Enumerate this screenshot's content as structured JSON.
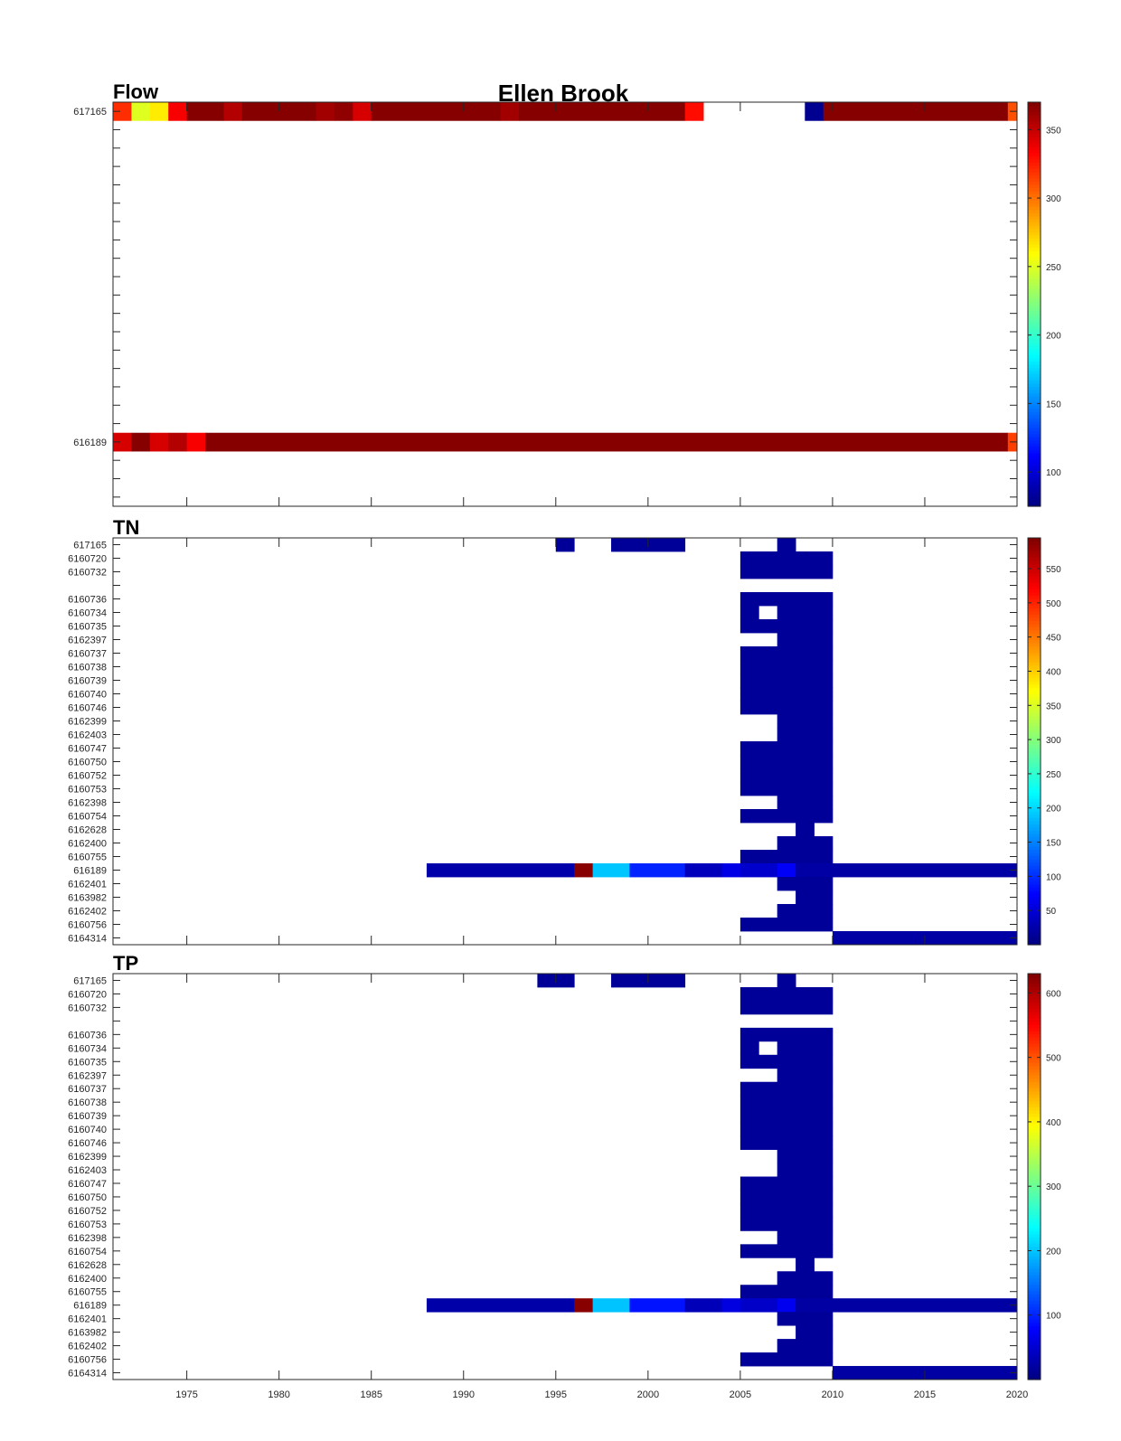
{
  "figure": {
    "title": "Ellen Brook"
  },
  "chart_data": [
    {
      "type": "heatmap",
      "title": "Flow",
      "xlim": [
        1971,
        2020
      ],
      "x_ticks": [
        1975,
        1980,
        1985,
        1990,
        1995,
        2000,
        2005,
        2010,
        2015,
        2020
      ],
      "row_count": 22,
      "row_labels": [
        {
          "row": 0,
          "label": "617165"
        },
        {
          "row": 18,
          "label": "616189"
        }
      ],
      "colorbar": {
        "min": 75,
        "max": 370,
        "ticks": [
          100,
          150,
          200,
          250,
          300,
          350
        ],
        "colormap": "jet"
      },
      "cells": [
        {
          "row": 0,
          "x0": 1971,
          "x1": 1972,
          "v": 320
        },
        {
          "row": 0,
          "x0": 1972,
          "x1": 1973,
          "v": 250
        },
        {
          "row": 0,
          "x0": 1973,
          "x1": 1974,
          "v": 265
        },
        {
          "row": 0,
          "x0": 1974,
          "x1": 1975,
          "v": 335
        },
        {
          "row": 0,
          "x0": 1975,
          "x1": 1977,
          "v": 368
        },
        {
          "row": 0,
          "x0": 1977,
          "x1": 1978,
          "v": 355
        },
        {
          "row": 0,
          "x0": 1978,
          "x1": 1982,
          "v": 368
        },
        {
          "row": 0,
          "x0": 1982,
          "x1": 1983,
          "v": 360
        },
        {
          "row": 0,
          "x0": 1983,
          "x1": 1984,
          "v": 365
        },
        {
          "row": 0,
          "x0": 1984,
          "x1": 1985,
          "v": 345
        },
        {
          "row": 0,
          "x0": 1985,
          "x1": 1992,
          "v": 368
        },
        {
          "row": 0,
          "x0": 1992,
          "x1": 1993,
          "v": 360
        },
        {
          "row": 0,
          "x0": 1993,
          "x1": 2002,
          "v": 368
        },
        {
          "row": 0,
          "x0": 2002,
          "x1": 2003,
          "v": 330
        },
        {
          "row": 0,
          "x0": 2008.5,
          "x1": 2009.5,
          "v": 80
        },
        {
          "row": 0,
          "x0": 2009.5,
          "x1": 2019.5,
          "v": 368
        },
        {
          "row": 0,
          "x0": 2019.5,
          "x1": 2020.5,
          "v": 310
        },
        {
          "row": 18,
          "x0": 1971,
          "x1": 1972,
          "v": 345
        },
        {
          "row": 18,
          "x0": 1972,
          "x1": 1973,
          "v": 368
        },
        {
          "row": 18,
          "x0": 1973,
          "x1": 1974,
          "v": 345
        },
        {
          "row": 18,
          "x0": 1974,
          "x1": 1975,
          "v": 355
        },
        {
          "row": 18,
          "x0": 1975,
          "x1": 1976,
          "v": 335
        },
        {
          "row": 18,
          "x0": 1976,
          "x1": 2019.5,
          "v": 368
        },
        {
          "row": 18,
          "x0": 2019.5,
          "x1": 2020.5,
          "v": 315
        }
      ]
    },
    {
      "type": "heatmap",
      "title": "TN",
      "xlim": [
        1971,
        2020
      ],
      "x_ticks": [
        1975,
        1980,
        1985,
        1990,
        1995,
        2000,
        2005,
        2010,
        2015,
        2020
      ],
      "row_count": 30,
      "row_labels": [
        {
          "row": 0,
          "label": "617165"
        },
        {
          "row": 1,
          "label": "6160720"
        },
        {
          "row": 2,
          "label": "6160732"
        },
        {
          "row": 4,
          "label": "6160736"
        },
        {
          "row": 5,
          "label": "6160734"
        },
        {
          "row": 6,
          "label": "6160735"
        },
        {
          "row": 7,
          "label": "6162397"
        },
        {
          "row": 8,
          "label": "6160737"
        },
        {
          "row": 9,
          "label": "6160738"
        },
        {
          "row": 10,
          "label": "6160739"
        },
        {
          "row": 11,
          "label": "6160740"
        },
        {
          "row": 12,
          "label": "6160746"
        },
        {
          "row": 13,
          "label": "6162399"
        },
        {
          "row": 14,
          "label": "6162403"
        },
        {
          "row": 15,
          "label": "6160747"
        },
        {
          "row": 16,
          "label": "6160750"
        },
        {
          "row": 17,
          "label": "6160752"
        },
        {
          "row": 18,
          "label": "6160753"
        },
        {
          "row": 19,
          "label": "6162398"
        },
        {
          "row": 20,
          "label": "6160754"
        },
        {
          "row": 21,
          "label": "6162628"
        },
        {
          "row": 22,
          "label": "6162400"
        },
        {
          "row": 23,
          "label": "6160755"
        },
        {
          "row": 24,
          "label": "616189"
        },
        {
          "row": 25,
          "label": "6162401"
        },
        {
          "row": 26,
          "label": "6163982"
        },
        {
          "row": 27,
          "label": "6162402"
        },
        {
          "row": 28,
          "label": "6160756"
        },
        {
          "row": 29,
          "label": "6164314"
        }
      ],
      "colorbar": {
        "min": 0,
        "max": 595,
        "ticks": [
          50,
          100,
          150,
          200,
          250,
          300,
          350,
          400,
          450,
          500,
          550
        ],
        "colormap": "jet"
      },
      "cells": [
        {
          "row": 0,
          "x0": 1995,
          "x1": 1996,
          "v": 15
        },
        {
          "row": 0,
          "x0": 1998,
          "x1": 2002,
          "v": 15
        },
        {
          "row": 0,
          "x0": 2007,
          "x1": 2008,
          "v": 15
        },
        {
          "row": 1,
          "x0": 2005,
          "x1": 2010,
          "v": 15
        },
        {
          "row": 2,
          "x0": 2005,
          "x1": 2010,
          "v": 15
        },
        {
          "row": 4,
          "x0": 2005,
          "x1": 2010,
          "v": 15
        },
        {
          "row": 5,
          "x0": 2005,
          "x1": 2006,
          "v": 15
        },
        {
          "row": 5,
          "x0": 2007,
          "x1": 2010,
          "v": 15
        },
        {
          "row": 6,
          "x0": 2005,
          "x1": 2010,
          "v": 15
        },
        {
          "row": 7,
          "x0": 2007,
          "x1": 2010,
          "v": 15
        },
        {
          "row": 8,
          "x0": 2005,
          "x1": 2010,
          "v": 15
        },
        {
          "row": 9,
          "x0": 2005,
          "x1": 2010,
          "v": 15
        },
        {
          "row": 10,
          "x0": 2005,
          "x1": 2010,
          "v": 15
        },
        {
          "row": 11,
          "x0": 2005,
          "x1": 2010,
          "v": 15
        },
        {
          "row": 12,
          "x0": 2005,
          "x1": 2010,
          "v": 15
        },
        {
          "row": 13,
          "x0": 2007,
          "x1": 2010,
          "v": 15
        },
        {
          "row": 14,
          "x0": 2007,
          "x1": 2010,
          "v": 15
        },
        {
          "row": 15,
          "x0": 2005,
          "x1": 2010,
          "v": 15
        },
        {
          "row": 16,
          "x0": 2005,
          "x1": 2010,
          "v": 15
        },
        {
          "row": 17,
          "x0": 2005,
          "x1": 2010,
          "v": 15
        },
        {
          "row": 18,
          "x0": 2005,
          "x1": 2010,
          "v": 15
        },
        {
          "row": 19,
          "x0": 2007,
          "x1": 2010,
          "v": 15
        },
        {
          "row": 20,
          "x0": 2005,
          "x1": 2010,
          "v": 15
        },
        {
          "row": 21,
          "x0": 2008,
          "x1": 2009,
          "v": 15
        },
        {
          "row": 22,
          "x0": 2007,
          "x1": 2010,
          "v": 15
        },
        {
          "row": 23,
          "x0": 2005,
          "x1": 2010,
          "v": 15
        },
        {
          "row": 24,
          "x0": 1988,
          "x1": 1996,
          "v": 25
        },
        {
          "row": 24,
          "x0": 1996,
          "x1": 1997,
          "v": 590
        },
        {
          "row": 24,
          "x0": 1997,
          "x1": 1999,
          "v": 190
        },
        {
          "row": 24,
          "x0": 1999,
          "x1": 2002,
          "v": 95
        },
        {
          "row": 24,
          "x0": 2002,
          "x1": 2004,
          "v": 35
        },
        {
          "row": 24,
          "x0": 2004,
          "x1": 2005,
          "v": 60
        },
        {
          "row": 24,
          "x0": 2005,
          "x1": 2007,
          "v": 45
        },
        {
          "row": 24,
          "x0": 2007,
          "x1": 2008,
          "v": 70
        },
        {
          "row": 24,
          "x0": 2008,
          "x1": 2020,
          "v": 22
        },
        {
          "row": 25,
          "x0": 2007,
          "x1": 2010,
          "v": 15
        },
        {
          "row": 26,
          "x0": 2008,
          "x1": 2010,
          "v": 15
        },
        {
          "row": 27,
          "x0": 2007,
          "x1": 2010,
          "v": 15
        },
        {
          "row": 28,
          "x0": 2005,
          "x1": 2010,
          "v": 15
        },
        {
          "row": 29,
          "x0": 2010,
          "x1": 2020,
          "v": 22
        }
      ]
    },
    {
      "type": "heatmap",
      "title": "TP",
      "xlim": [
        1971,
        2020
      ],
      "x_ticks": [
        1975,
        1980,
        1985,
        1990,
        1995,
        2000,
        2005,
        2010,
        2015,
        2020
      ],
      "x_tick_labels": [
        "1975",
        "1980",
        "1985",
        "1990",
        "1995",
        "2000",
        "2005",
        "2010",
        "2015",
        "2020"
      ],
      "row_count": 30,
      "row_labels": [
        {
          "row": 0,
          "label": "617165"
        },
        {
          "row": 1,
          "label": "6160720"
        },
        {
          "row": 2,
          "label": "6160732"
        },
        {
          "row": 4,
          "label": "6160736"
        },
        {
          "row": 5,
          "label": "6160734"
        },
        {
          "row": 6,
          "label": "6160735"
        },
        {
          "row": 7,
          "label": "6162397"
        },
        {
          "row": 8,
          "label": "6160737"
        },
        {
          "row": 9,
          "label": "6160738"
        },
        {
          "row": 10,
          "label": "6160739"
        },
        {
          "row": 11,
          "label": "6160740"
        },
        {
          "row": 12,
          "label": "6160746"
        },
        {
          "row": 13,
          "label": "6162399"
        },
        {
          "row": 14,
          "label": "6162403"
        },
        {
          "row": 15,
          "label": "6160747"
        },
        {
          "row": 16,
          "label": "6160750"
        },
        {
          "row": 17,
          "label": "6160752"
        },
        {
          "row": 18,
          "label": "6160753"
        },
        {
          "row": 19,
          "label": "6162398"
        },
        {
          "row": 20,
          "label": "6160754"
        },
        {
          "row": 21,
          "label": "6162628"
        },
        {
          "row": 22,
          "label": "6162400"
        },
        {
          "row": 23,
          "label": "6160755"
        },
        {
          "row": 24,
          "label": "616189"
        },
        {
          "row": 25,
          "label": "6162401"
        },
        {
          "row": 26,
          "label": "6163982"
        },
        {
          "row": 27,
          "label": "6162402"
        },
        {
          "row": 28,
          "label": "6160756"
        },
        {
          "row": 29,
          "label": "6164314"
        }
      ],
      "colorbar": {
        "min": 0,
        "max": 630,
        "ticks": [
          100,
          200,
          300,
          400,
          500,
          600
        ],
        "colormap": "jet"
      },
      "cells": [
        {
          "row": 0,
          "x0": 1994,
          "x1": 1996,
          "v": 15
        },
        {
          "row": 0,
          "x0": 1998,
          "x1": 2002,
          "v": 15
        },
        {
          "row": 0,
          "x0": 2007,
          "x1": 2008,
          "v": 15
        },
        {
          "row": 1,
          "x0": 2005,
          "x1": 2010,
          "v": 15
        },
        {
          "row": 2,
          "x0": 2005,
          "x1": 2010,
          "v": 15
        },
        {
          "row": 4,
          "x0": 2005,
          "x1": 2010,
          "v": 15
        },
        {
          "row": 5,
          "x0": 2005,
          "x1": 2006,
          "v": 15
        },
        {
          "row": 5,
          "x0": 2007,
          "x1": 2010,
          "v": 15
        },
        {
          "row": 6,
          "x0": 2005,
          "x1": 2010,
          "v": 15
        },
        {
          "row": 7,
          "x0": 2007,
          "x1": 2010,
          "v": 15
        },
        {
          "row": 8,
          "x0": 2005,
          "x1": 2010,
          "v": 15
        },
        {
          "row": 9,
          "x0": 2005,
          "x1": 2010,
          "v": 15
        },
        {
          "row": 10,
          "x0": 2005,
          "x1": 2010,
          "v": 15
        },
        {
          "row": 11,
          "x0": 2005,
          "x1": 2010,
          "v": 15
        },
        {
          "row": 12,
          "x0": 2005,
          "x1": 2010,
          "v": 15
        },
        {
          "row": 13,
          "x0": 2007,
          "x1": 2010,
          "v": 15
        },
        {
          "row": 14,
          "x0": 2007,
          "x1": 2010,
          "v": 15
        },
        {
          "row": 15,
          "x0": 2005,
          "x1": 2010,
          "v": 15
        },
        {
          "row": 16,
          "x0": 2005,
          "x1": 2010,
          "v": 15
        },
        {
          "row": 17,
          "x0": 2005,
          "x1": 2010,
          "v": 15
        },
        {
          "row": 18,
          "x0": 2005,
          "x1": 2010,
          "v": 15
        },
        {
          "row": 19,
          "x0": 2007,
          "x1": 2010,
          "v": 15
        },
        {
          "row": 20,
          "x0": 2005,
          "x1": 2010,
          "v": 15
        },
        {
          "row": 21,
          "x0": 2008,
          "x1": 2009,
          "v": 15
        },
        {
          "row": 22,
          "x0": 2007,
          "x1": 2010,
          "v": 15
        },
        {
          "row": 23,
          "x0": 2005,
          "x1": 2010,
          "v": 15
        },
        {
          "row": 24,
          "x0": 1988,
          "x1": 1996,
          "v": 25
        },
        {
          "row": 24,
          "x0": 1996,
          "x1": 1997,
          "v": 625
        },
        {
          "row": 24,
          "x0": 1997,
          "x1": 1999,
          "v": 200
        },
        {
          "row": 24,
          "x0": 1999,
          "x1": 2002,
          "v": 90
        },
        {
          "row": 24,
          "x0": 2002,
          "x1": 2004,
          "v": 35
        },
        {
          "row": 24,
          "x0": 2004,
          "x1": 2005,
          "v": 60
        },
        {
          "row": 24,
          "x0": 2005,
          "x1": 2007,
          "v": 45
        },
        {
          "row": 24,
          "x0": 2007,
          "x1": 2008,
          "v": 70
        },
        {
          "row": 24,
          "x0": 2008,
          "x1": 2020,
          "v": 22
        },
        {
          "row": 25,
          "x0": 2007,
          "x1": 2010,
          "v": 15
        },
        {
          "row": 26,
          "x0": 2008,
          "x1": 2010,
          "v": 15
        },
        {
          "row": 27,
          "x0": 2007,
          "x1": 2010,
          "v": 15
        },
        {
          "row": 28,
          "x0": 2005,
          "x1": 2010,
          "v": 15
        },
        {
          "row": 29,
          "x0": 2010,
          "x1": 2020,
          "v": 22
        }
      ]
    }
  ]
}
